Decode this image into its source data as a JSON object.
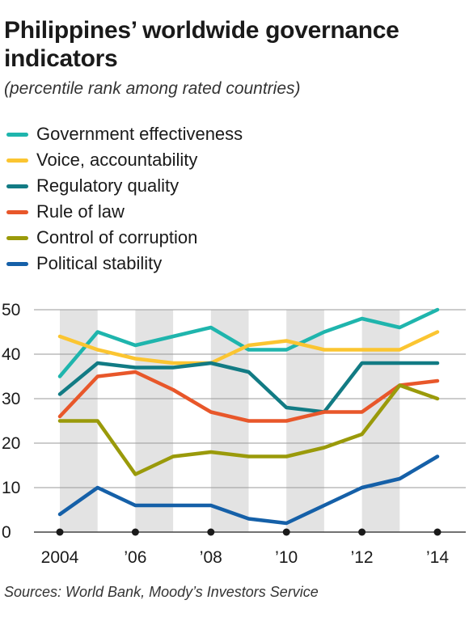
{
  "title": "Philippines’ worldwide governance indicators",
  "subtitle": "(percentile rank among rated countries)",
  "source": "Sources: World Bank, Moody’s Investors Service",
  "chart_data": {
    "type": "line",
    "x": [
      2004,
      2005,
      2006,
      2007,
      2008,
      2009,
      2010,
      2011,
      2012,
      2013,
      2014
    ],
    "x_tick_values": [
      2004,
      2006,
      2008,
      2010,
      2012,
      2014
    ],
    "x_tick_labels": [
      "2004",
      "’06",
      "’08",
      "’10",
      "’12",
      "’14"
    ],
    "y_ticks": [
      0,
      10,
      20,
      30,
      40,
      50
    ],
    "ylim": [
      0,
      52
    ],
    "xlim": [
      2003.4,
      2014.7
    ],
    "grid": "horizontal",
    "legend_position": "top-left",
    "series": [
      {
        "name": "Government effectiveness",
        "color": "#1fb5ad",
        "values": [
          35,
          45,
          42,
          44,
          46,
          41,
          41,
          45,
          48,
          46,
          50
        ]
      },
      {
        "name": "Voice, accountability",
        "color": "#fbc531",
        "values": [
          44,
          41,
          39,
          38,
          38,
          42,
          43,
          41,
          41,
          41,
          45
        ]
      },
      {
        "name": "Regulatory quality",
        "color": "#127b84",
        "values": [
          31,
          38,
          37,
          37,
          38,
          36,
          28,
          27,
          38,
          38,
          38
        ]
      },
      {
        "name": "Rule of law",
        "color": "#e8572a",
        "values": [
          26,
          35,
          36,
          32,
          27,
          25,
          25,
          27,
          27,
          33,
          34
        ]
      },
      {
        "name": "Control of corruption",
        "color": "#9a9a0a",
        "values": [
          25,
          25,
          13,
          17,
          18,
          17,
          17,
          19,
          22,
          33,
          30
        ]
      },
      {
        "name": "Political stability",
        "color": "#1560a8",
        "values": [
          4,
          10,
          6,
          6,
          6,
          3,
          2,
          6,
          10,
          12,
          17
        ]
      }
    ]
  }
}
